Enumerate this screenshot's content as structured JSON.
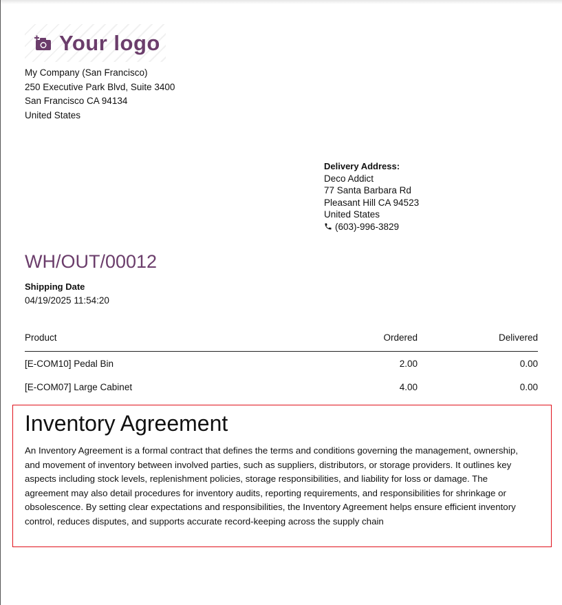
{
  "logo": {
    "text": "Your logo",
    "icon": "camera-plus-icon",
    "color": "#6b3d6b"
  },
  "company": {
    "lines": [
      "My Company (San Francisco)",
      "250 Executive Park Blvd, Suite 3400",
      "San Francisco CA 94134",
      "United States"
    ]
  },
  "delivery": {
    "label": "Delivery Address:",
    "lines": [
      "Deco Addict",
      "77 Santa Barbara Rd",
      "Pleasant Hill CA 94523",
      "United States"
    ],
    "phone": "(603)-996-3829",
    "phone_icon": "phone-icon"
  },
  "document": {
    "title": "WH/OUT/00012",
    "shipping_date_label": "Shipping Date",
    "shipping_date": "04/19/2025 11:54:20"
  },
  "table": {
    "headers": [
      "Product",
      "Ordered",
      "Delivered"
    ],
    "rows": [
      [
        "[E-COM10] Pedal Bin",
        "2.00",
        "0.00"
      ],
      [
        "[E-COM07] Large Cabinet",
        "4.00",
        "0.00"
      ]
    ]
  },
  "agreement": {
    "title": "Inventory Agreement",
    "body": "An Inventory Agreement is a formal contract that defines the terms and conditions governing the management, ownership, and movement of inventory between involved parties, such as suppliers, distributors, or storage providers. It outlines key aspects including stock levels, replenishment policies, storage responsibilities, and liability for loss or damage. The agreement may also detail procedures for inventory audits, reporting requirements, and responsibilities for shrinkage or obsolescence. By setting clear expectations and responsibilities, the Inventory Agreement helps ensure efficient inventory control, reduces disputes, and supports accurate record-keeping across the supply chain",
    "border_color": "#e0101a"
  }
}
